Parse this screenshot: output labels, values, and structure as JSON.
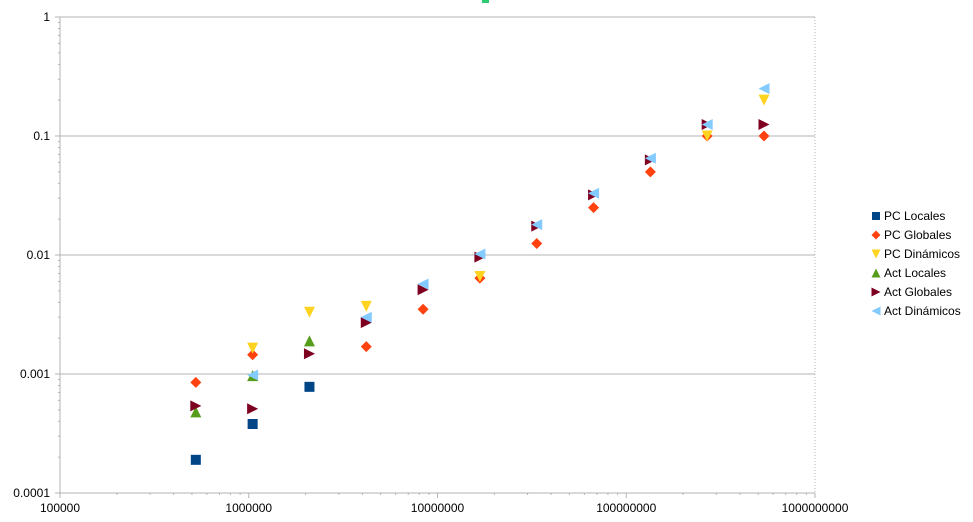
{
  "chart_data": {
    "type": "scatter",
    "title": "",
    "xlabel": "",
    "ylabel": "",
    "x_scale": "log",
    "y_scale": "log",
    "xlim": [
      100000,
      1000000000
    ],
    "ylim": [
      0.0001,
      1
    ],
    "x_tick_labels": [
      "100000",
      "1000000",
      "10000000",
      "100000000",
      "1000000000"
    ],
    "y_tick_labels": [
      "0.0001",
      "0.001",
      "0.01",
      "0.1",
      "1"
    ],
    "grid": "horizontal",
    "legend_position": "right",
    "series": [
      {
        "name": "PC Locales",
        "marker": "square",
        "color": "#004586",
        "points": [
          [
            524288,
            0.00019
          ],
          [
            1048576,
            0.00038
          ],
          [
            2097152,
            0.00078
          ]
        ]
      },
      {
        "name": "PC Globales",
        "marker": "diamond",
        "color": "#ff420e",
        "points": [
          [
            524288,
            0.00085
          ],
          [
            1048576,
            0.00145
          ],
          [
            4194304,
            0.0017
          ],
          [
            8388608,
            0.0035
          ],
          [
            16777216,
            0.0064
          ],
          [
            33554432,
            0.0125
          ],
          [
            67108864,
            0.025
          ],
          [
            134217728,
            0.05
          ],
          [
            268435456,
            0.1
          ],
          [
            536870912,
            0.1
          ]
        ]
      },
      {
        "name": "PC Dinámicos",
        "marker": "triangle-down",
        "color": "#ffd320",
        "points": [
          [
            1048576,
            0.00165
          ],
          [
            2097152,
            0.0033
          ],
          [
            4194304,
            0.0037
          ],
          [
            16777216,
            0.0066
          ],
          [
            268435456,
            0.1
          ],
          [
            536870912,
            0.2
          ]
        ]
      },
      {
        "name": "Act Locales",
        "marker": "triangle-up",
        "color": "#579d1c",
        "points": [
          [
            524288,
            0.00048
          ],
          [
            1048576,
            0.00097
          ],
          [
            2097152,
            0.0019
          ]
        ]
      },
      {
        "name": "Act Globales",
        "marker": "triangle-right",
        "color": "#7e0021",
        "points": [
          [
            524288,
            0.00054
          ],
          [
            1048576,
            0.00051
          ],
          [
            2097152,
            0.00148
          ],
          [
            4194304,
            0.0027
          ],
          [
            8388608,
            0.0051
          ],
          [
            16777216,
            0.0096
          ],
          [
            33554432,
            0.0175
          ],
          [
            67108864,
            0.032
          ],
          [
            134217728,
            0.063
          ],
          [
            268435456,
            0.125
          ],
          [
            536870912,
            0.125
          ]
        ]
      },
      {
        "name": "Act Dinámicos",
        "marker": "triangle-left",
        "color": "#83caff",
        "points": [
          [
            1048576,
            0.00098
          ],
          [
            4194304,
            0.003
          ],
          [
            8388608,
            0.0057
          ],
          [
            16777216,
            0.0102
          ],
          [
            33554432,
            0.018
          ],
          [
            67108864,
            0.033
          ],
          [
            134217728,
            0.065
          ],
          [
            268435456,
            0.125
          ],
          [
            536870912,
            0.25
          ]
        ]
      }
    ]
  }
}
